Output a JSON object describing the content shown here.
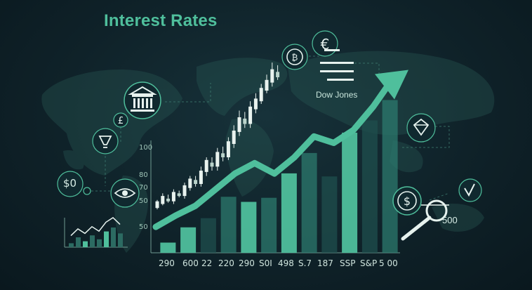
{
  "title": "Interest Rates",
  "annotation": "Dow Jones",
  "badges": {
    "left_dollar": "$0",
    "right_dollar": "$",
    "bottom_right": "500",
    "pound": "£"
  },
  "colors": {
    "accent": "#4fbf9c",
    "bar_dark": "#1f4f4d",
    "bar_mid": "#2c7a6e",
    "bar_bright": "#4fbf9c",
    "candle_up": "#e8f2ee",
    "candle_down": "#b9d3ca"
  },
  "icons": [
    "bank-icon",
    "pound-icon",
    "lightbulb-icon",
    "eye-icon",
    "dollar-icon",
    "bitcoin-icon",
    "euro-icon",
    "gem-icon",
    "magnifier-icon",
    "arrow-icon"
  ],
  "chart_data": {
    "type": "bar",
    "title": "",
    "categories": [
      "290",
      "600",
      "22",
      "220",
      "290",
      "S0I",
      "498",
      "S.7",
      "187",
      "SSP",
      "S&P",
      "5 00"
    ],
    "values": [
      10,
      25,
      34,
      55,
      50,
      54,
      78,
      98,
      75,
      118,
      130,
      150
    ],
    "highlight": [
      true,
      true,
      false,
      false,
      true,
      false,
      true,
      false,
      false,
      true,
      false,
      false
    ],
    "yticks": [
      "100",
      "80",
      "70",
      "50",
      "50"
    ],
    "trend": [
      6,
      20,
      32,
      52,
      72,
      85,
      72,
      92,
      118,
      110,
      126,
      155,
      190
    ],
    "candles": [
      [
        4,
        14,
        2,
        16
      ],
      [
        10,
        22,
        8,
        26
      ],
      [
        18,
        14,
        12,
        24
      ],
      [
        14,
        28,
        10,
        32
      ],
      [
        26,
        22,
        20,
        30
      ],
      [
        22,
        38,
        18,
        42
      ],
      [
        34,
        48,
        30,
        52
      ],
      [
        46,
        40,
        36,
        52
      ],
      [
        40,
        60,
        36,
        66
      ],
      [
        58,
        76,
        52,
        80
      ],
      [
        72,
        66,
        60,
        80
      ],
      [
        66,
        88,
        60,
        94
      ],
      [
        86,
        80,
        74,
        96
      ],
      [
        80,
        104,
        76,
        110
      ],
      [
        100,
        120,
        94,
        128
      ],
      [
        118,
        140,
        112,
        150
      ],
      [
        138,
        130,
        124,
        148
      ],
      [
        130,
        156,
        124,
        164
      ],
      [
        152,
        168,
        146,
        176
      ],
      [
        164,
        184,
        160,
        190
      ],
      [
        180,
        196,
        176,
        204
      ],
      [
        192,
        212,
        186,
        222
      ],
      [
        208,
        200,
        196,
        218
      ]
    ],
    "mini_values": [
      4,
      10,
      6,
      12,
      8,
      16,
      20,
      14
    ]
  }
}
